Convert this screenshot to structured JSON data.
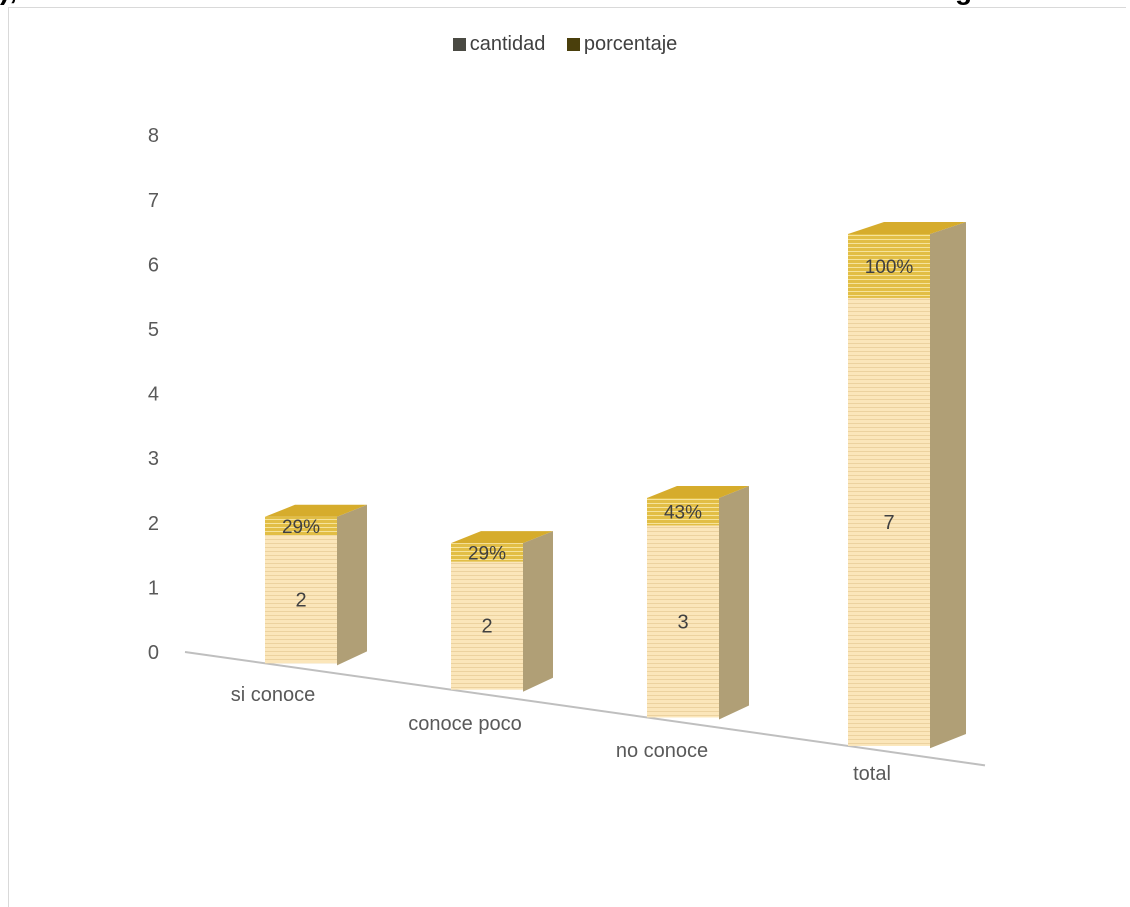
{
  "header": {
    "left_fragment": "),",
    "right_fragment": "g"
  },
  "colors": {
    "cantidad": "#fbe6ba",
    "cantidad_side": "#b09f76",
    "porcentaje": "#e2be45",
    "legend_cantidad": "#4a4a43",
    "legend_porcentaje": "#4a3f0c"
  },
  "chart_data": {
    "type": "bar",
    "stacked": true,
    "categories": [
      "si conoce",
      "conoce poco",
      "no conoce",
      "total"
    ],
    "series": [
      {
        "name": "cantidad",
        "values": [
          2,
          2,
          3,
          7
        ]
      },
      {
        "name": "porcentaje",
        "values": [
          0.29,
          0.29,
          0.43,
          1.0
        ],
        "labels": [
          "29%",
          "29%",
          "43%",
          "100%"
        ]
      }
    ],
    "ylim": [
      0,
      8
    ],
    "yticks": [
      "0",
      "1",
      "2",
      "3",
      "4",
      "5",
      "6",
      "7",
      "8"
    ],
    "legend": "top-center",
    "grid": false
  }
}
